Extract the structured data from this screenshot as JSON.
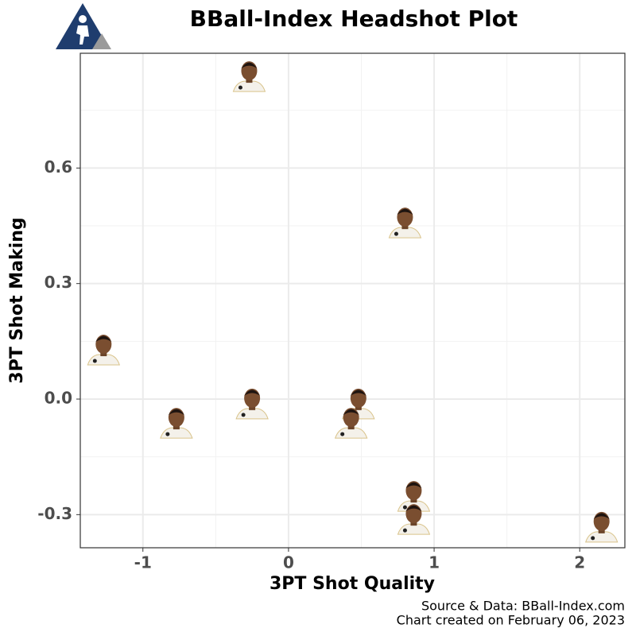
{
  "chart_data": {
    "type": "scatter",
    "title": "BBall-Index Headshot Plot",
    "xlabel": "3PT Shot Quality",
    "ylabel": "3PT Shot Making",
    "caption": [
      "Source & Data: BBall-Index.com",
      "Chart created on February 06, 2023"
    ],
    "x": [
      -0.27,
      0.8,
      -1.27,
      -0.77,
      -0.25,
      0.48,
      0.43,
      0.86,
      0.86,
      2.15
    ],
    "y": [
      0.84,
      0.46,
      0.13,
      -0.06,
      -0.01,
      -0.01,
      -0.06,
      -0.25,
      -0.31,
      -0.33
    ],
    "xlim": [
      -1.43,
      2.31
    ],
    "ylim": [
      -0.386,
      0.898
    ],
    "xticks": [
      -1,
      0,
      1,
      2
    ],
    "yticks": [
      -0.3,
      {
        "value": 0,
        "label": "0.0"
      },
      0.3,
      0.6
    ],
    "grid": true
  }
}
